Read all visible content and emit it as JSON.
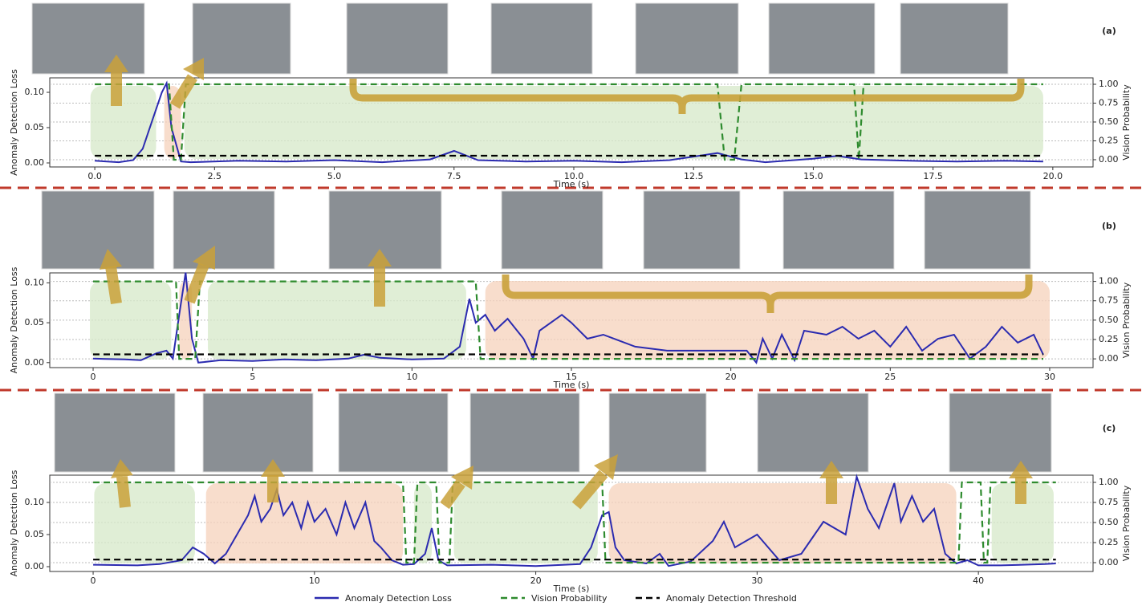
{
  "chart_data": [
    {
      "type": "line",
      "label": "(a)",
      "xlabel": "Time (s)",
      "ylabel": "Anomaly Detection Loss",
      "y2label": "Vision Probability",
      "legend": "bottom",
      "grid": "y2",
      "xlim": [
        -0.94,
        20.84
      ],
      "xticks": [
        {
          "value": 0,
          "label": "0.0"
        },
        2.5,
        {
          "value": 5,
          "label": "5.0"
        },
        7.5,
        {
          "value": 10,
          "label": "10.0"
        },
        12.5,
        {
          "value": 15,
          "label": "15.0"
        },
        17.5,
        {
          "value": 20,
          "label": "20.0"
        }
      ],
      "ylim": [
        -0.0057,
        0.1205
      ],
      "yticks": [
        {
          "value": 0,
          "label": "0.00"
        },
        0.05,
        {
          "value": 0.1,
          "label": "0.10"
        }
      ],
      "y2lim": [
        -0.096,
        1.085
      ],
      "y2ticks": [
        {
          "value": 0,
          "label": "0.00"
        },
        0.25,
        {
          "value": 0.5,
          "label": "0.50"
        },
        0.75,
        {
          "value": 1,
          "label": "1.00"
        }
      ],
      "shaded_normal": [
        [
          -0.09,
          1.28
        ],
        [
          1.87,
          19.8
        ]
      ],
      "shaded_anomaly": [
        [
          1.45,
          1.8
        ]
      ],
      "series": [
        {
          "name": "Anomaly Detection Loss",
          "color": "#2b2bb0",
          "dash": "solid",
          "x": [
            0,
            0.5,
            0.8,
            1.0,
            1.2,
            1.4,
            1.5,
            1.6,
            1.8,
            2.0,
            3,
            4,
            5,
            6,
            7,
            7.5,
            8,
            9,
            10,
            11,
            12,
            12.5,
            13,
            13.5,
            14,
            15,
            15.5,
            16,
            17,
            18,
            19,
            19.8
          ],
          "values": [
            0.003,
            0.001,
            0.004,
            0.02,
            0.06,
            0.1,
            0.113,
            0.05,
            0.002,
            0.001,
            0.003,
            0.002,
            0.004,
            0.001,
            0.005,
            0.017,
            0.004,
            0.002,
            0.003,
            0.001,
            0.004,
            0.009,
            0.014,
            0.005,
            0.001,
            0.006,
            0.01,
            0.005,
            0.003,
            0.002,
            0.003,
            0.002
          ]
        },
        {
          "name": "Vision Probability",
          "color": "#2e8b2e",
          "dash": "dashed",
          "axis": "y2",
          "x": [
            0,
            1.55,
            1.65,
            1.8,
            1.9,
            13.0,
            13.15,
            13.35,
            13.5,
            15.85,
            15.95,
            16.05,
            19.8
          ],
          "values": [
            1,
            1,
            0,
            0,
            1,
            1,
            0,
            0,
            1,
            1,
            0,
            1,
            1
          ]
        },
        {
          "name": "Anomaly Detection Threshold",
          "color": "#000000",
          "dash": "dashed",
          "x": [
            0,
            19.8
          ],
          "values": [
            0.0102,
            0.0102
          ]
        }
      ]
    },
    {
      "type": "line",
      "label": "(b)",
      "xlabel": "Time (s)",
      "ylabel": "Anomaly Detection Loss",
      "y2label": "Vision Probability",
      "grid": "y2",
      "xlim": [
        -1.36,
        31.36
      ],
      "xticks": [
        0,
        5,
        10,
        15,
        20,
        25,
        30
      ],
      "ylim": [
        -0.00625,
        0.1125
      ],
      "yticks": [
        {
          "value": 0,
          "label": "0.00"
        },
        0.05,
        {
          "value": 0.1,
          "label": "0.10"
        }
      ],
      "y2lim": [
        -0.113,
        1.11
      ],
      "y2ticks": [
        {
          "value": 0,
          "label": "0.00"
        },
        0.25,
        {
          "value": 0.5,
          "label": "0.50"
        },
        0.75,
        {
          "value": 1,
          "label": "1.00"
        }
      ],
      "shaded_normal": [
        [
          -0.1,
          2.45
        ],
        [
          3.6,
          11.7
        ]
      ],
      "shaded_anomaly": [
        [
          2.7,
          3.1
        ],
        [
          12.3,
          30.0
        ]
      ],
      "series": [
        {
          "color": "#2b2bb0",
          "dash": "solid",
          "x": [
            0,
            1,
            1.5,
            2,
            2.3,
            2.5,
            2.7,
            2.9,
            3.1,
            3.3,
            4,
            5,
            6,
            7,
            8,
            8.5,
            9,
            10,
            11,
            11.5,
            11.8,
            12.0,
            12.3,
            12.6,
            13,
            13.5,
            13.8,
            14,
            14.7,
            15,
            15.5,
            16,
            17,
            18,
            19,
            20,
            20.5,
            20.8,
            21,
            21.3,
            21.6,
            22,
            22.3,
            23,
            23.5,
            24,
            24.5,
            25,
            25.5,
            26,
            26.5,
            27,
            27.5,
            28,
            28.5,
            29,
            29.5,
            29.8
          ],
          "values": [
            0.005,
            0.004,
            0.003,
            0.012,
            0.015,
            0.005,
            0.06,
            0.113,
            0.03,
            0.0,
            0.003,
            0.002,
            0.004,
            0.003,
            0.005,
            0.01,
            0.006,
            0.004,
            0.005,
            0.02,
            0.08,
            0.05,
            0.06,
            0.04,
            0.055,
            0.03,
            0.005,
            0.04,
            0.06,
            0.05,
            0.03,
            0.035,
            0.02,
            0.015,
            0.015,
            0.015,
            0.015,
            0.0,
            0.03,
            0.005,
            0.035,
            0.003,
            0.04,
            0.035,
            0.045,
            0.03,
            0.04,
            0.02,
            0.045,
            0.015,
            0.03,
            0.035,
            0.005,
            0.02,
            0.045,
            0.025,
            0.035,
            0.01
          ]
        },
        {
          "color": "#2e8b2e",
          "dash": "dashed",
          "axis": "y2",
          "x": [
            0,
            2.6,
            2.7,
            3.2,
            3.35,
            12.0,
            12.15,
            29.8
          ],
          "values": [
            1,
            1,
            0,
            0,
            1,
            1,
            0,
            0
          ]
        },
        {
          "color": "#000000",
          "dash": "dashed",
          "x": [
            0,
            29.8
          ],
          "values": [
            0.0104,
            0.0104
          ]
        }
      ]
    },
    {
      "type": "line",
      "label": "(c)",
      "xlabel": "Time (s)",
      "ylabel": "Anomaly Detection Loss",
      "y2label": "Vision Probability",
      "grid": "y2",
      "xlim": [
        -1.96,
        45.18
      ],
      "xticks": [
        0,
        10,
        20,
        30,
        40
      ],
      "ylim": [
        -0.0075,
        0.1425
      ],
      "yticks": [
        {
          "value": 0,
          "label": "0.00"
        },
        0.05,
        {
          "value": 0.1,
          "label": "0.10"
        }
      ],
      "y2lim": [
        -0.11,
        1.09
      ],
      "y2ticks": [
        {
          "value": 0,
          "label": "0.00"
        },
        0.25,
        {
          "value": 0.5,
          "label": "0.50"
        },
        0.75,
        {
          "value": 1,
          "label": "1.00"
        }
      ],
      "shaded_normal": [
        [
          0.05,
          4.6
        ],
        [
          14.5,
          15.3
        ],
        [
          16.3,
          22.8
        ],
        [
          40.6,
          43.4
        ]
      ],
      "shaded_anomaly": [
        [
          5.1,
          14.0
        ],
        [
          23.3,
          39.0
        ]
      ],
      "series": [
        {
          "color": "#2b2bb0",
          "dash": "solid",
          "x": [
            0,
            2,
            3,
            4,
            4.5,
            5,
            5.5,
            6,
            6.5,
            7,
            7.3,
            7.6,
            8,
            8.3,
            8.6,
            9,
            9.4,
            9.7,
            10,
            10.5,
            11,
            11.4,
            11.8,
            12.3,
            12.7,
            13,
            13.5,
            14,
            14.5,
            15,
            15.3,
            15.6,
            16,
            18,
            20,
            22,
            22.5,
            23,
            23.3,
            23.6,
            24,
            25,
            25.6,
            26,
            27,
            28,
            28.5,
            29,
            30,
            31,
            32,
            33,
            34,
            34.5,
            35,
            35.5,
            35.8,
            36.2,
            36.5,
            37,
            37.5,
            38,
            38.5,
            39,
            39.5,
            40,
            41,
            42,
            43,
            43.5
          ],
          "values": [
            0.003,
            0.002,
            0.004,
            0.01,
            0.03,
            0.02,
            0.005,
            0.02,
            0.05,
            0.08,
            0.11,
            0.07,
            0.09,
            0.12,
            0.08,
            0.1,
            0.06,
            0.1,
            0.07,
            0.09,
            0.05,
            0.1,
            0.06,
            0.1,
            0.04,
            0.03,
            0.01,
            0.003,
            0.004,
            0.02,
            0.06,
            0.01,
            0.002,
            0.003,
            0.001,
            0.004,
            0.03,
            0.08,
            0.085,
            0.03,
            0.01,
            0.005,
            0.02,
            0.001,
            0.008,
            0.04,
            0.07,
            0.03,
            0.05,
            0.01,
            0.02,
            0.07,
            0.05,
            0.14,
            0.09,
            0.06,
            0.09,
            0.13,
            0.07,
            0.11,
            0.07,
            0.09,
            0.02,
            0.005,
            0.01,
            0.002,
            0.002,
            0.003,
            0.004,
            0.005
          ]
        },
        {
          "color": "#2e8b2e",
          "dash": "dashed",
          "axis": "y2",
          "x": [
            0,
            14,
            14.15,
            14.5,
            14.65,
            15.5,
            15.65,
            16.1,
            16.25,
            23.0,
            23.15,
            39.1,
            39.25,
            40.1,
            40.25,
            40.4,
            40.55,
            43.5
          ],
          "values": [
            1,
            1,
            0,
            0,
            1,
            1,
            0,
            0,
            1,
            1,
            0,
            0,
            1,
            1,
            0,
            0,
            1,
            1
          ]
        },
        {
          "color": "#000000",
          "dash": "dashed",
          "x": [
            0,
            43.5
          ],
          "values": [
            0.011,
            0.011
          ]
        }
      ]
    }
  ]
}
